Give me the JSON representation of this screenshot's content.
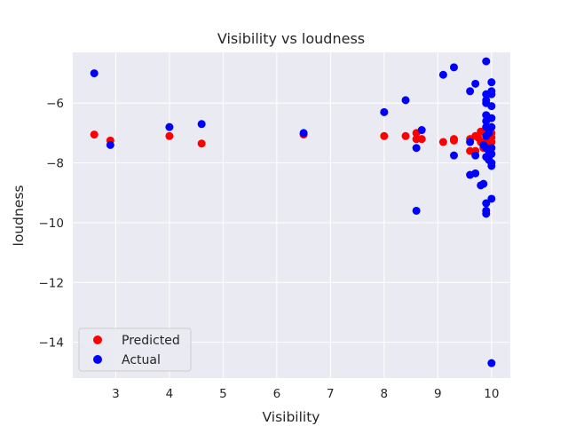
{
  "chart_data": {
    "type": "scatter",
    "title": "Visibility vs loudness",
    "xlabel": "Visibility",
    "ylabel": "loudness",
    "xlim": [
      2.2,
      10.35
    ],
    "ylim": [
      -15.2,
      -4.3
    ],
    "xticks": [
      3,
      4,
      5,
      6,
      7,
      8,
      9,
      10
    ],
    "yticks": [
      -14,
      -12,
      -10,
      -8,
      -6
    ],
    "grid": true,
    "background": "#eaeaf2",
    "legend_position": "lower-left",
    "series": [
      {
        "name": "Predicted",
        "color": "#ff0000",
        "points": [
          [
            2.6,
            -7.05
          ],
          [
            2.9,
            -7.25
          ],
          [
            4.0,
            -7.1
          ],
          [
            4.6,
            -7.35
          ],
          [
            6.5,
            -7.05
          ],
          [
            8.0,
            -7.1
          ],
          [
            8.4,
            -7.1
          ],
          [
            8.6,
            -7.2
          ],
          [
            8.6,
            -7.0
          ],
          [
            8.7,
            -7.2
          ],
          [
            9.1,
            -7.3
          ],
          [
            9.3,
            -7.25
          ],
          [
            9.3,
            -7.2
          ],
          [
            9.6,
            -7.6
          ],
          [
            9.6,
            -7.2
          ],
          [
            9.7,
            -7.1
          ],
          [
            9.7,
            -7.6
          ],
          [
            9.75,
            -7.15
          ],
          [
            9.8,
            -6.95
          ],
          [
            9.8,
            -7.3
          ],
          [
            9.85,
            -7.5
          ],
          [
            9.9,
            -7.2
          ],
          [
            9.9,
            -7.05
          ],
          [
            9.9,
            -7.4
          ],
          [
            9.95,
            -7.1
          ],
          [
            9.95,
            -6.95
          ],
          [
            10.0,
            -7.15
          ],
          [
            10.0,
            -7.0
          ],
          [
            10.0,
            -7.3
          ]
        ]
      },
      {
        "name": "Actual",
        "color": "#0000ff",
        "points": [
          [
            2.6,
            -5.0
          ],
          [
            2.9,
            -7.4
          ],
          [
            4.0,
            -6.8
          ],
          [
            4.6,
            -6.7
          ],
          [
            6.5,
            -7.0
          ],
          [
            8.0,
            -6.3
          ],
          [
            8.4,
            -5.9
          ],
          [
            8.6,
            -7.5
          ],
          [
            8.6,
            -9.6
          ],
          [
            8.7,
            -6.9
          ],
          [
            9.1,
            -5.05
          ],
          [
            9.3,
            -4.8
          ],
          [
            9.3,
            -7.75
          ],
          [
            9.6,
            -5.6
          ],
          [
            9.6,
            -7.3
          ],
          [
            9.6,
            -8.4
          ],
          [
            9.7,
            -5.35
          ],
          [
            9.7,
            -7.75
          ],
          [
            9.7,
            -8.35
          ],
          [
            9.8,
            -8.75
          ],
          [
            9.85,
            -8.7
          ],
          [
            9.85,
            -7.4
          ],
          [
            9.9,
            -4.6
          ],
          [
            9.9,
            -5.7
          ],
          [
            9.9,
            -5.9
          ],
          [
            9.9,
            -6.0
          ],
          [
            9.9,
            -6.4
          ],
          [
            9.9,
            -6.6
          ],
          [
            9.9,
            -6.8
          ],
          [
            9.9,
            -7.1
          ],
          [
            9.9,
            -7.5
          ],
          [
            9.9,
            -7.8
          ],
          [
            9.9,
            -9.35
          ],
          [
            9.9,
            -9.6
          ],
          [
            9.9,
            -9.7
          ],
          [
            9.95,
            -6.5
          ],
          [
            9.95,
            -7.0
          ],
          [
            9.95,
            -7.6
          ],
          [
            9.95,
            -7.9
          ],
          [
            10.0,
            -5.3
          ],
          [
            10.0,
            -5.6
          ],
          [
            10.0,
            -5.7
          ],
          [
            10.0,
            -6.1
          ],
          [
            10.0,
            -6.5
          ],
          [
            10.0,
            -6.8
          ],
          [
            10.0,
            -7.5
          ],
          [
            10.0,
            -7.7
          ],
          [
            10.0,
            -8.0
          ],
          [
            10.0,
            -8.1
          ],
          [
            10.0,
            -9.2
          ],
          [
            10.0,
            -14.7
          ]
        ]
      }
    ]
  }
}
